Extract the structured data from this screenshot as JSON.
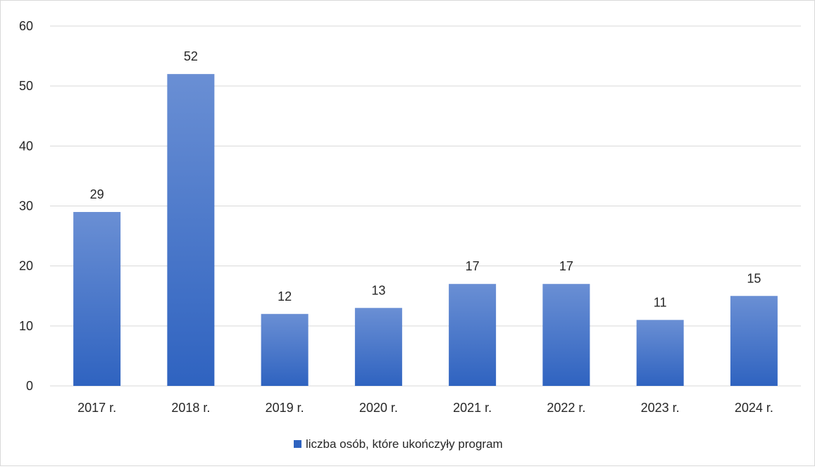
{
  "chart_data": {
    "type": "bar",
    "categories": [
      "2017 r.",
      "2018 r.",
      "2019 r.",
      "2020 r.",
      "2021 r.",
      "2022 r.",
      "2023 r.",
      "2024 r."
    ],
    "series": [
      {
        "name": "liczba osób, które ukończyły program",
        "values": [
          29,
          52,
          12,
          13,
          17,
          17,
          11,
          15
        ]
      }
    ],
    "ylim": [
      0,
      60
    ],
    "yticks": [
      0,
      10,
      20,
      30,
      40,
      50,
      60
    ],
    "grid": true,
    "legend_position": "bottom",
    "data_labels": true,
    "colors": {
      "bar_top": "#6a8fd4",
      "bar_bottom": "#2f63c0",
      "grid": "#d9d9d9",
      "text": "#262626"
    }
  }
}
